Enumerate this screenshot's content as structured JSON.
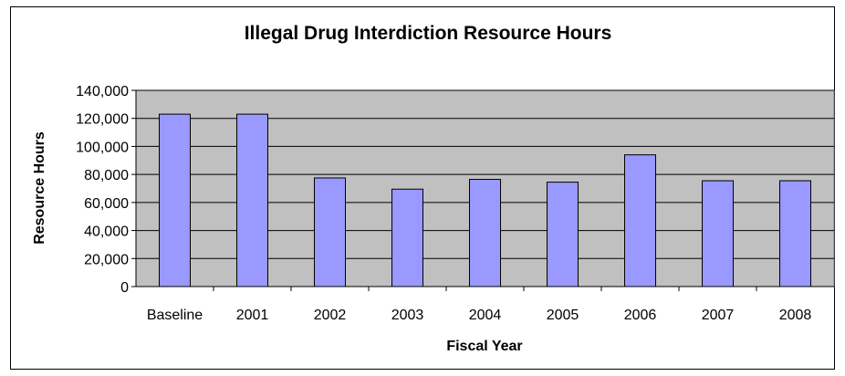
{
  "chart_data": {
    "type": "bar",
    "title": "Illegal Drug Interdiction Resource Hours",
    "xlabel": "Fiscal Year",
    "ylabel": "Resource Hours",
    "categories": [
      "Baseline",
      "2001",
      "2002",
      "2003",
      "2004",
      "2005",
      "2006",
      "2007",
      "2008"
    ],
    "values": [
      123000,
      123000,
      77500,
      69500,
      76500,
      74500,
      94000,
      75500,
      75500
    ],
    "ylim": [
      0,
      140000
    ],
    "yticks": [
      0,
      20000,
      40000,
      60000,
      80000,
      100000,
      120000,
      140000
    ],
    "ytick_labels": [
      "0",
      "20,000",
      "40,000",
      "60,000",
      "80,000",
      "100,000",
      "120,000",
      "140,000"
    ],
    "grid": true,
    "legend": "none",
    "colors": {
      "bar_fill": "#9999ff",
      "bar_stroke": "#000000",
      "plot_background": "#c0c0c0",
      "gridline": "#000000"
    }
  }
}
